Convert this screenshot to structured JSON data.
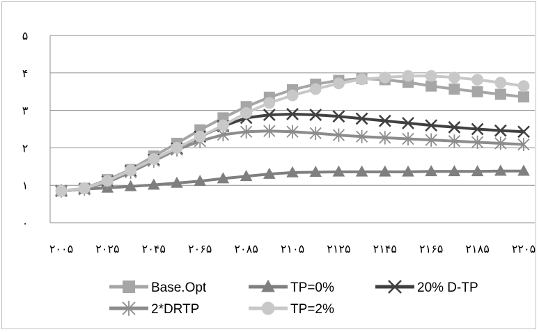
{
  "chart_data": {
    "type": "line",
    "title": "",
    "xlabel": "",
    "ylabel": "",
    "ylim": [
      0,
      5
    ],
    "y_ticks": [
      "۰",
      "۱",
      "۲",
      "۳",
      "۴",
      "۵"
    ],
    "x_tick_labels": [
      "۲۰۰۵",
      "۲۰۲۵",
      "۲۰۴۵",
      "۲۰۶۵",
      "۲۰۸۵",
      "۲۱۰۵",
      "۲۱۲۵",
      "۲۱۴۵",
      "۲۱۶۵",
      "۲۱۸۵",
      "۲۲۰۵"
    ],
    "x": [
      2005,
      2015,
      2025,
      2035,
      2045,
      2055,
      2065,
      2075,
      2085,
      2095,
      2105,
      2115,
      2125,
      2135,
      2145,
      2155,
      2165,
      2175,
      2185,
      2195,
      2205
    ],
    "grid": true,
    "legend_position": "bottom",
    "series": [
      {
        "name": "Base.Opt",
        "color": "#a6a6a6",
        "marker": "square",
        "values": [
          0.85,
          0.92,
          1.15,
          1.42,
          1.78,
          2.12,
          2.48,
          2.8,
          3.1,
          3.35,
          3.55,
          3.7,
          3.8,
          3.85,
          3.82,
          3.75,
          3.65,
          3.57,
          3.5,
          3.43,
          3.36
        ]
      },
      {
        "name": "TP=0%",
        "color": "#7f7f7f",
        "marker": "triangle",
        "values": [
          0.85,
          0.9,
          0.93,
          0.97,
          1.01,
          1.06,
          1.11,
          1.18,
          1.24,
          1.3,
          1.34,
          1.35,
          1.36,
          1.36,
          1.36,
          1.36,
          1.37,
          1.37,
          1.37,
          1.38,
          1.38
        ]
      },
      {
        "name": "20% D-TP",
        "color": "#404040",
        "marker": "x",
        "values": [
          0.85,
          0.9,
          1.1,
          1.38,
          1.68,
          1.98,
          2.3,
          2.58,
          2.8,
          2.88,
          2.9,
          2.88,
          2.84,
          2.78,
          2.72,
          2.66,
          2.6,
          2.55,
          2.5,
          2.46,
          2.43
        ]
      },
      {
        "name": "2*DRTP",
        "color": "#8c8c8c",
        "marker": "asterisk",
        "values": [
          0.85,
          0.9,
          1.08,
          1.35,
          1.65,
          1.95,
          2.18,
          2.35,
          2.43,
          2.45,
          2.43,
          2.39,
          2.34,
          2.3,
          2.27,
          2.24,
          2.21,
          2.18,
          2.15,
          2.12,
          2.09
        ]
      },
      {
        "name": "TP=2%",
        "color": "#c8c8c8",
        "marker": "circle",
        "values": [
          0.85,
          0.92,
          1.12,
          1.4,
          1.7,
          2.0,
          2.3,
          2.6,
          2.93,
          3.2,
          3.4,
          3.57,
          3.72,
          3.83,
          3.88,
          3.92,
          3.92,
          3.88,
          3.82,
          3.74,
          3.65
        ]
      }
    ]
  }
}
